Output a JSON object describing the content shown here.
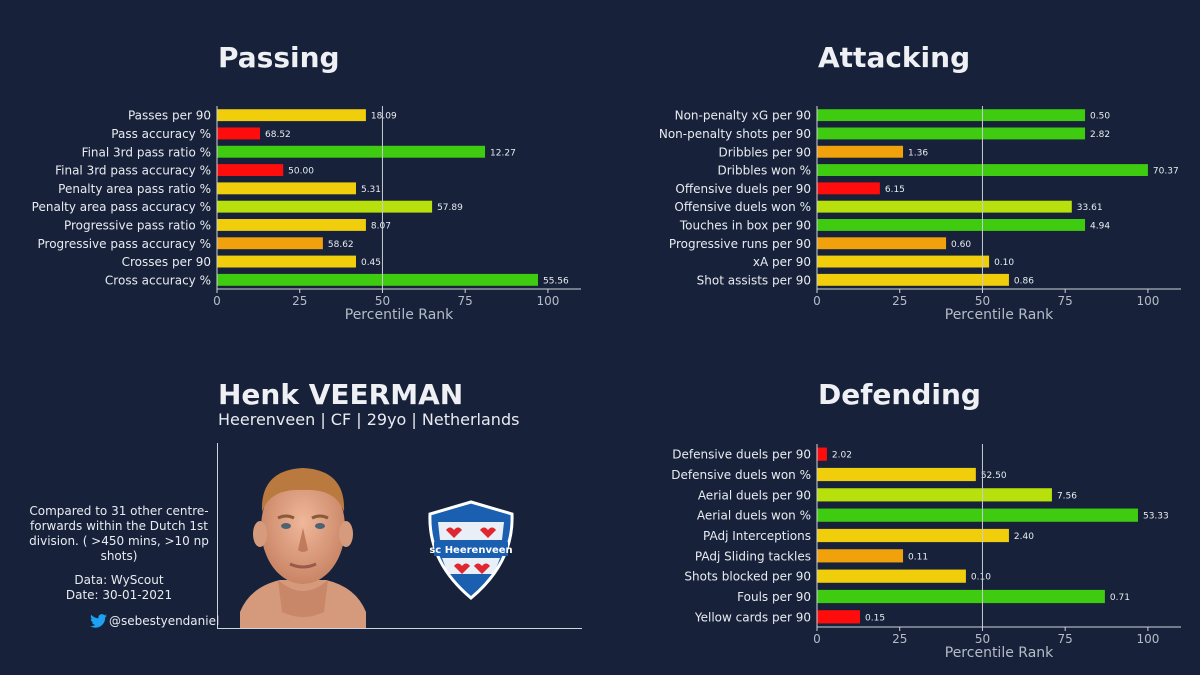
{
  "player": {
    "name": "Henk VEERMAN",
    "subtitle": "Heerenveen | CF | 29yo | Netherlands",
    "note": "Compared to 31 other centre-forwards within the Dutch 1st division. ( >450 mins, >10 np shots)",
    "data_source": "Data: WyScout",
    "date": "Date: 30-01-2021",
    "twitter_handle": "@sebestyendaniel",
    "club_logo_text": "sc Heerenveen"
  },
  "icons": {
    "twitter": "twitter-bird-icon",
    "photo": "player-photo",
    "logo": "club-logo-heerenveen"
  },
  "colors": {
    "background": "#17223a",
    "red": "#ff0d0d",
    "orange": "#f0a10c",
    "yellow": "#f0ce0c",
    "lime": "#b7e00c",
    "green": "#3fcb0f",
    "twitter": "#1da1f2"
  },
  "chart_data": [
    {
      "type": "bar",
      "orientation": "horizontal",
      "title": "Passing",
      "xlabel": "Percentile Rank",
      "xlim": [
        0,
        110
      ],
      "xticks": [
        0,
        25,
        50,
        75,
        100
      ],
      "reference_line": 50,
      "categories": [
        "Passes per 90",
        "Pass accuracy %",
        "Final 3rd pass ratio %",
        "Final 3rd pass accuracy %",
        "Penalty area pass ratio %",
        "Penalty area pass accuracy %",
        "Progressive pass ratio %",
        "Progressive pass accuracy %",
        "Crosses per 90",
        "Cross accuracy %"
      ],
      "values": [
        45,
        13,
        81,
        20,
        42,
        65,
        45,
        32,
        42,
        97
      ],
      "labels": [
        "18.09",
        "68.52",
        "12.27",
        "50.00",
        "5.31",
        "57.89",
        "8.07",
        "58.62",
        "0.45",
        "55.56"
      ],
      "colors": [
        "yellow",
        "red",
        "green",
        "red",
        "yellow",
        "lime",
        "yellow",
        "orange",
        "yellow",
        "green"
      ]
    },
    {
      "type": "bar",
      "orientation": "horizontal",
      "title": "Attacking",
      "xlabel": "Percentile Rank",
      "xlim": [
        0,
        110
      ],
      "xticks": [
        0,
        25,
        50,
        75,
        100
      ],
      "reference_line": 50,
      "categories": [
        "Non-penalty xG per 90",
        "Non-penalty shots per 90",
        "Dribbles per 90",
        "Dribbles won %",
        "Offensive duels per 90",
        "Offensive duels won %",
        "Touches in box per 90",
        "Progressive runs per 90",
        "xA per 90",
        "Shot assists per 90"
      ],
      "values": [
        81,
        81,
        26,
        100,
        19,
        77,
        81,
        39,
        52,
        58
      ],
      "labels": [
        "0.50",
        "2.82",
        "1.36",
        "70.37",
        "6.15",
        "33.61",
        "4.94",
        "0.60",
        "0.10",
        "0.86"
      ],
      "colors": [
        "green",
        "green",
        "orange",
        "green",
        "red",
        "lime",
        "green",
        "orange",
        "yellow",
        "yellow"
      ]
    },
    {
      "type": "bar",
      "orientation": "horizontal",
      "title": "Defending",
      "xlabel": "Percentile Rank",
      "xlim": [
        0,
        110
      ],
      "xticks": [
        0,
        25,
        50,
        75,
        100
      ],
      "reference_line": 50,
      "categories": [
        "Defensive duels per 90",
        "Defensive duels won %",
        "Aerial duels per 90",
        "Aerial duels won %",
        "PAdj Interceptions",
        "PAdj Sliding tackles",
        "Shots blocked per 90",
        "Fouls per 90",
        "Yellow cards per 90"
      ],
      "values": [
        3,
        48,
        71,
        97,
        58,
        26,
        45,
        87,
        13
      ],
      "labels": [
        "2.02",
        "52.50",
        "7.56",
        "53.33",
        "2.40",
        "0.11",
        "0.10",
        "0.71",
        "0.15"
      ],
      "colors": [
        "red",
        "yellow",
        "lime",
        "green",
        "yellow",
        "orange",
        "yellow",
        "green",
        "red"
      ]
    }
  ]
}
